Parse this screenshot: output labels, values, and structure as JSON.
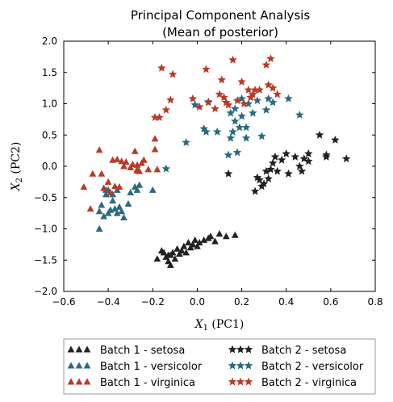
{
  "chart_data": {
    "type": "scatter",
    "title": "Principal Component Analysis",
    "subtitle": "(Mean of posterior)",
    "xlabel": "X_1 (PC1)",
    "ylabel": "X_2 (PC2)",
    "xlim": [
      -0.6,
      0.8
    ],
    "ylim": [
      -2.0,
      2.0
    ],
    "xticks": [
      "−0.6",
      "−0.4",
      "−0.2",
      "0.0",
      "0.2",
      "0.4",
      "0.6",
      "0.8"
    ],
    "yticks": [
      "−2.0",
      "−1.5",
      "−1.0",
      "−0.5",
      "0.0",
      "0.5",
      "1.0",
      "1.5",
      "2.0"
    ],
    "grid": false,
    "legend_position": "bottom",
    "series": [
      {
        "name": "Batch 1 - setosa",
        "marker": "triangle",
        "color": "#222222",
        "points": [
          [
            -0.18,
            -1.48
          ],
          [
            -0.15,
            -1.38
          ],
          [
            -0.14,
            -1.45
          ],
          [
            -0.13,
            -1.52
          ],
          [
            -0.12,
            -1.58
          ],
          [
            -0.12,
            -1.42
          ],
          [
            -0.11,
            -1.38
          ],
          [
            -0.1,
            -1.48
          ],
          [
            -0.09,
            -1.32
          ],
          [
            -0.08,
            -1.4
          ],
          [
            -0.07,
            -1.35
          ],
          [
            -0.06,
            -1.28
          ],
          [
            -0.05,
            -1.38
          ],
          [
            -0.04,
            -1.22
          ],
          [
            -0.03,
            -1.3
          ],
          [
            -0.02,
            -1.25
          ],
          [
            -0.01,
            -1.18
          ],
          [
            0.0,
            -1.28
          ],
          [
            0.01,
            -1.22
          ],
          [
            0.03,
            -1.18
          ],
          [
            0.05,
            -1.15
          ],
          [
            0.06,
            -1.12
          ],
          [
            0.08,
            -1.2
          ],
          [
            0.1,
            -1.08
          ],
          [
            0.13,
            -1.12
          ],
          [
            0.17,
            -1.1
          ],
          [
            -0.16,
            -1.35
          ],
          [
            -0.13,
            -1.42
          ]
        ]
      },
      {
        "name": "Batch 1 - versicolor",
        "marker": "triangle",
        "color": "#2b6a82",
        "points": [
          [
            -0.44,
            -0.72
          ],
          [
            -0.43,
            -0.62
          ],
          [
            -0.42,
            -0.8
          ],
          [
            -0.41,
            -0.45
          ],
          [
            -0.4,
            -0.38
          ],
          [
            -0.4,
            -0.75
          ],
          [
            -0.39,
            -0.7
          ],
          [
            -0.38,
            -0.55
          ],
          [
            -0.37,
            -0.68
          ],
          [
            -0.36,
            -0.75
          ],
          [
            -0.36,
            -0.38
          ],
          [
            -0.35,
            -0.65
          ],
          [
            -0.34,
            -0.72
          ],
          [
            -0.33,
            -0.82
          ],
          [
            -0.31,
            -0.6
          ],
          [
            -0.3,
            -0.42
          ],
          [
            -0.28,
            -0.33
          ],
          [
            -0.27,
            -0.38
          ],
          [
            -0.26,
            -0.3
          ],
          [
            -0.2,
            -0.38
          ],
          [
            -0.44,
            -1.0
          ],
          [
            -0.41,
            -0.38
          ],
          [
            -0.38,
            -0.45
          ]
        ]
      },
      {
        "name": "Batch 1 - virginica",
        "marker": "triangle",
        "color": "#b83b26",
        "points": [
          [
            -0.51,
            -0.33
          ],
          [
            -0.48,
            -0.68
          ],
          [
            -0.47,
            -0.12
          ],
          [
            -0.44,
            0.26
          ],
          [
            -0.43,
            -0.12
          ],
          [
            -0.42,
            -0.35
          ],
          [
            -0.4,
            -0.25
          ],
          [
            -0.39,
            -0.42
          ],
          [
            -0.38,
            0.1
          ],
          [
            -0.37,
            -0.32
          ],
          [
            -0.36,
            0.11
          ],
          [
            -0.35,
            -0.33
          ],
          [
            -0.34,
            0.08
          ],
          [
            -0.33,
            0.0
          ],
          [
            -0.32,
            0.07
          ],
          [
            -0.3,
            -0.02
          ],
          [
            -0.29,
            0.03
          ],
          [
            -0.28,
            0.24
          ],
          [
            -0.27,
            -0.05
          ],
          [
            -0.27,
            0.02
          ],
          [
            -0.26,
            -0.08
          ],
          [
            -0.25,
            0.05
          ],
          [
            -0.24,
            0.1
          ],
          [
            -0.22,
            -0.05
          ],
          [
            -0.19,
            0.44
          ],
          [
            -0.19,
            0.27
          ],
          [
            -0.18,
            -0.05
          ],
          [
            -0.27,
            -0.07
          ]
        ]
      },
      {
        "name": "Batch 2 - setosa",
        "marker": "star",
        "color": "#222222",
        "points": [
          [
            0.14,
            -0.12
          ],
          [
            0.26,
            -0.4
          ],
          [
            0.27,
            -0.18
          ],
          [
            0.28,
            -0.22
          ],
          [
            0.29,
            -0.32
          ],
          [
            0.3,
            -0.28
          ],
          [
            0.31,
            -0.08
          ],
          [
            0.32,
            -0.2
          ],
          [
            0.33,
            -0.05
          ],
          [
            0.34,
            0.05
          ],
          [
            0.35,
            0.15
          ],
          [
            0.36,
            -0.08
          ],
          [
            0.38,
            0.1
          ],
          [
            0.4,
            0.2
          ],
          [
            0.41,
            -0.12
          ],
          [
            0.44,
            0.15
          ],
          [
            0.46,
            0.0
          ],
          [
            0.47,
            -0.08
          ],
          [
            0.48,
            0.12
          ],
          [
            0.5,
            0.2
          ],
          [
            0.5,
            0.08
          ],
          [
            0.55,
            0.5
          ],
          [
            0.58,
            0.18
          ],
          [
            0.58,
            0.15
          ],
          [
            0.62,
            0.42
          ],
          [
            0.67,
            0.12
          ]
        ]
      },
      {
        "name": "Batch 2 - versicolor",
        "marker": "star",
        "color": "#2b6a82",
        "points": [
          [
            -0.14,
            -0.04
          ],
          [
            -0.05,
            0.38
          ],
          [
            -0.01,
            0.98
          ],
          [
            0.03,
            0.6
          ],
          [
            0.04,
            0.55
          ],
          [
            0.05,
            1.03
          ],
          [
            0.09,
            0.55
          ],
          [
            0.13,
            1.02
          ],
          [
            0.14,
            0.18
          ],
          [
            0.15,
            0.45
          ],
          [
            0.15,
            0.85
          ],
          [
            0.16,
            0.55
          ],
          [
            0.17,
            0.92
          ],
          [
            0.17,
            0.72
          ],
          [
            0.18,
            0.22
          ],
          [
            0.19,
            0.62
          ],
          [
            0.2,
            1.08
          ],
          [
            0.22,
            0.45
          ],
          [
            0.23,
            1.0
          ],
          [
            0.25,
            0.85
          ],
          [
            0.27,
            1.05
          ],
          [
            0.29,
            0.48
          ],
          [
            0.31,
            0.9
          ],
          [
            0.32,
            1.08
          ],
          [
            0.34,
            1.02
          ],
          [
            0.41,
            1.08
          ],
          [
            0.46,
            0.82
          ],
          [
            0.2,
            0.8
          ],
          [
            0.22,
            0.62
          ]
        ]
      },
      {
        "name": "Batch 2 - virginica",
        "marker": "star",
        "color": "#b83b26",
        "points": [
          [
            -0.19,
            0.78
          ],
          [
            -0.17,
            0.78
          ],
          [
            -0.16,
            1.57
          ],
          [
            -0.14,
            0.9
          ],
          [
            -0.12,
            1.06
          ],
          [
            -0.11,
            1.47
          ],
          [
            -0.02,
            1.08
          ],
          [
            0.01,
            0.95
          ],
          [
            0.04,
            1.55
          ],
          [
            0.05,
            1.02
          ],
          [
            0.08,
            0.92
          ],
          [
            0.1,
            1.15
          ],
          [
            0.11,
            1.38
          ],
          [
            0.12,
            1.1
          ],
          [
            0.14,
            0.98
          ],
          [
            0.16,
            1.7
          ],
          [
            0.18,
            1.05
          ],
          [
            0.2,
            1.35
          ],
          [
            0.21,
            1.0
          ],
          [
            0.23,
            1.22
          ],
          [
            0.25,
            1.15
          ],
          [
            0.26,
            1.22
          ],
          [
            0.28,
            1.22
          ],
          [
            0.31,
            1.62
          ],
          [
            0.32,
            1.3
          ],
          [
            0.33,
            1.72
          ],
          [
            0.34,
            1.25
          ],
          [
            0.36,
            1.15
          ],
          [
            0.13,
            1.02
          ],
          [
            0.24,
            1.1
          ]
        ]
      }
    ]
  }
}
